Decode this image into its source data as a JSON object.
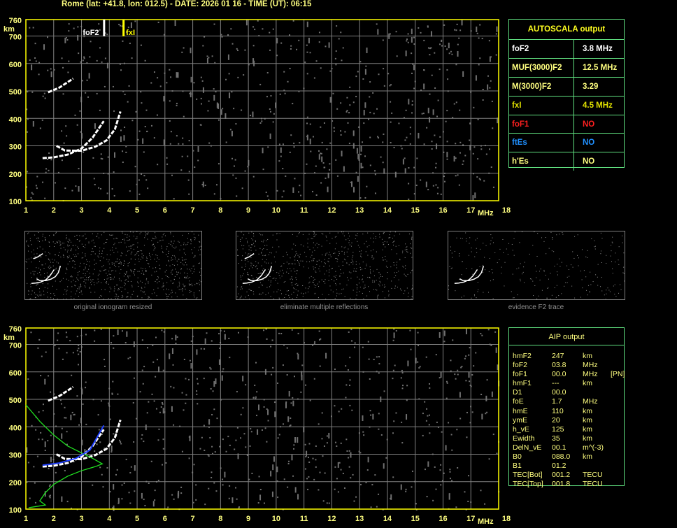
{
  "header": {
    "title": "Rome (lat: +41.8, lon: 012.5) - DATE: 2026 01 16 - TIME (UT): 06:15"
  },
  "autoscala": {
    "title": "AUTOSCALA output",
    "rows": [
      {
        "key": "foF2",
        "value": "3.8 MHz",
        "color": "#ffffff"
      },
      {
        "key": "MUF(3000)F2",
        "value": "12.5 MHz",
        "color": "#ffff80"
      },
      {
        "key": "M(3000)F2",
        "value": "3.29",
        "color": "#ffff80"
      },
      {
        "key": "fxI",
        "value": "4.5 MHz",
        "color": "#e0e000"
      },
      {
        "key": "foF1",
        "value": "NO",
        "color": "#ff2020"
      },
      {
        "key": "ftEs",
        "value": "NO",
        "color": "#2090ff"
      },
      {
        "key": "h'Es",
        "value": "NO",
        "color": "#ffff80"
      }
    ]
  },
  "aip": {
    "title": "AIP output",
    "rows": [
      [
        "hmF2",
        "247",
        "km",
        ""
      ],
      [
        "foF2",
        "03.8",
        "MHz",
        ""
      ],
      [
        "foF1",
        "00.0",
        "MHz",
        "[PN]"
      ],
      [
        "hmF1",
        "---",
        "km",
        ""
      ],
      [
        "D1",
        "00.0",
        "",
        ""
      ],
      [
        "foE",
        "1.7",
        "MHz",
        ""
      ],
      [
        "hmE",
        "110",
        "km",
        ""
      ],
      [
        "ymE",
        "20",
        "km",
        ""
      ],
      [
        "h_vE",
        "125",
        "km",
        ""
      ],
      [
        "Ewidth",
        "35",
        "km",
        ""
      ],
      [
        "DelN_vE",
        "00.1",
        "m^(-3)",
        ""
      ],
      [
        "B0",
        "088.0",
        "km",
        ""
      ],
      [
        "B1",
        "01.2",
        "",
        ""
      ],
      [
        "TEC[Bot]",
        "001.2",
        "TECU",
        ""
      ],
      [
        "TEC[Top]",
        "001.8",
        "TECU",
        ""
      ]
    ]
  },
  "thumbnails": [
    {
      "caption": "original ionogram resized"
    },
    {
      "caption": "eliminate multiple reflections"
    },
    {
      "caption": "evidence F2 trace"
    }
  ],
  "chart_data": [
    {
      "type": "scatter",
      "name": "ionogram",
      "xlim": [
        1,
        18
      ],
      "ylim": [
        100,
        760
      ],
      "xticks": [
        1,
        2,
        3,
        4,
        5,
        6,
        7,
        8,
        9,
        10,
        11,
        12,
        13,
        14,
        15,
        16,
        17,
        18
      ],
      "yticks": [
        100,
        200,
        300,
        400,
        500,
        600,
        700,
        760
      ],
      "xlabel": "MHz",
      "ylabel": "km",
      "grid": true,
      "markers": [
        {
          "label": "foF2",
          "x": 3.8,
          "color": "#ffffff"
        },
        {
          "label": "fxI",
          "x": 4.5,
          "color": "#ffff00"
        }
      ],
      "traces": {
        "o": [
          [
            1.6,
            255
          ],
          [
            2.0,
            258
          ],
          [
            2.5,
            268
          ],
          [
            3.0,
            290
          ],
          [
            3.4,
            330
          ],
          [
            3.8,
            390
          ]
        ],
        "x": [
          [
            2.1,
            300
          ],
          [
            2.4,
            283
          ],
          [
            3.0,
            282
          ],
          [
            3.5,
            297
          ],
          [
            3.9,
            320
          ],
          [
            4.2,
            360
          ],
          [
            4.4,
            425
          ]
        ],
        "second_hop": [
          [
            1.8,
            495
          ],
          [
            2.2,
            512
          ],
          [
            2.7,
            545
          ]
        ]
      }
    },
    {
      "type": "line",
      "name": "ionogram-with-profile",
      "xlim": [
        1,
        18
      ],
      "ylim": [
        100,
        760
      ],
      "xlabel": "MHz",
      "ylabel": "km",
      "grid": true,
      "profile_green": [
        [
          1,
          480
        ],
        [
          1.5,
          420
        ],
        [
          2.0,
          370
        ],
        [
          2.5,
          330
        ],
        [
          3.0,
          305
        ],
        [
          3.4,
          285
        ],
        [
          3.75,
          265
        ],
        [
          3.5,
          255
        ],
        [
          3.0,
          240
        ],
        [
          2.5,
          220
        ],
        [
          2.0,
          190
        ],
        [
          1.7,
          160
        ],
        [
          1.5,
          130
        ],
        [
          1.7,
          115
        ],
        [
          1.4,
          110
        ],
        [
          1.1,
          105
        ]
      ],
      "profile_blue": [
        [
          1.6,
          260
        ],
        [
          2.2,
          268
        ],
        [
          2.8,
          285
        ],
        [
          3.3,
          315
        ],
        [
          3.8,
          405
        ]
      ]
    }
  ],
  "colors": {
    "axis": "#ffff00",
    "grid": "#808080",
    "label": "#ffff80"
  }
}
